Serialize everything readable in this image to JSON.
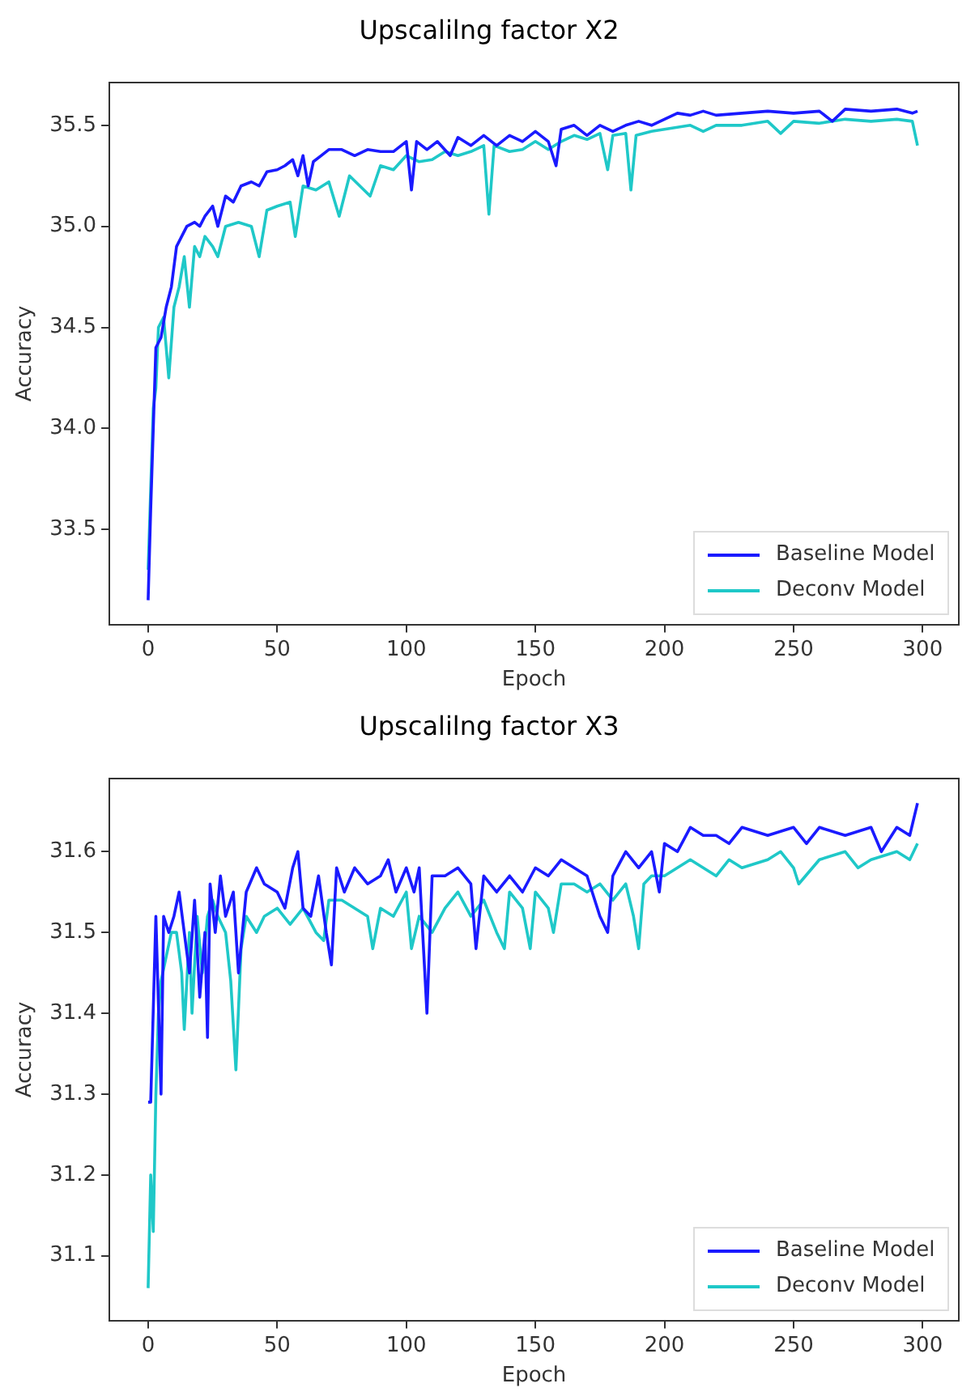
{
  "chart_data": [
    {
      "type": "line",
      "title": "Upscalilng factor X2",
      "xlabel": "Epoch",
      "ylabel": "Accuracy",
      "xlim": [
        -15,
        314
      ],
      "xticks": [
        0,
        50,
        100,
        150,
        200,
        250,
        300
      ],
      "ylim": [
        33.03,
        35.71
      ],
      "yticks": [
        {
          "value": 33.5,
          "label": "33.5"
        },
        {
          "value": 34,
          "label": "34.0"
        },
        {
          "value": 34.5,
          "label": "34.5"
        },
        {
          "value": 35,
          "label": "35.0"
        },
        {
          "value": 35.5,
          "label": "35.5"
        }
      ],
      "grid": false,
      "legend": "bottom right",
      "marker": "none",
      "line_style": "solid",
      "series": [
        {
          "name": "Baseline Model",
          "color": "#1a1aff",
          "x": [
            0,
            1,
            2,
            3,
            5,
            7,
            9,
            11,
            13,
            15,
            18,
            20,
            22,
            25,
            27,
            30,
            33,
            36,
            40,
            43,
            46,
            50,
            53,
            56,
            58,
            60,
            62,
            64,
            67,
            70,
            75,
            80,
            85,
            90,
            95,
            100,
            102,
            104,
            108,
            112,
            117,
            120,
            125,
            130,
            135,
            140,
            145,
            150,
            155,
            158,
            160,
            165,
            170,
            175,
            180,
            185,
            190,
            195,
            200,
            205,
            210,
            215,
            220,
            230,
            240,
            250,
            260,
            265,
            270,
            280,
            290,
            296,
            298
          ],
          "values": [
            33.15,
            33.6,
            34.0,
            34.4,
            34.45,
            34.6,
            34.7,
            34.9,
            34.95,
            35.0,
            35.02,
            35.0,
            35.05,
            35.1,
            35.0,
            35.15,
            35.12,
            35.2,
            35.22,
            35.2,
            35.27,
            35.28,
            35.3,
            35.33,
            35.25,
            35.35,
            35.2,
            35.32,
            35.35,
            35.38,
            35.38,
            35.35,
            35.38,
            35.37,
            35.37,
            35.42,
            35.18,
            35.42,
            35.38,
            35.42,
            35.35,
            35.44,
            35.4,
            35.45,
            35.4,
            35.45,
            35.42,
            35.47,
            35.42,
            35.3,
            35.48,
            35.5,
            35.45,
            35.5,
            35.47,
            35.5,
            35.52,
            35.5,
            35.53,
            35.56,
            35.55,
            35.57,
            35.55,
            35.56,
            35.57,
            35.56,
            35.57,
            35.52,
            35.58,
            35.57,
            35.58,
            35.56,
            35.57
          ]
        },
        {
          "name": "Deconv Model",
          "color": "#1fc8c8",
          "x": [
            0,
            1,
            2,
            3,
            4,
            6,
            8,
            10,
            12,
            14,
            16,
            18,
            20,
            22,
            25,
            27,
            30,
            35,
            40,
            43,
            46,
            50,
            55,
            57,
            60,
            65,
            70,
            74,
            78,
            82,
            86,
            90,
            95,
            100,
            105,
            110,
            115,
            120,
            125,
            130,
            132,
            134,
            140,
            145,
            150,
            155,
            160,
            165,
            170,
            175,
            178,
            180,
            185,
            187,
            189,
            195,
            200,
            210,
            215,
            220,
            230,
            240,
            245,
            250,
            260,
            270,
            280,
            290,
            296,
            298
          ],
          "values": [
            33.3,
            33.7,
            34.1,
            34.2,
            34.5,
            34.55,
            34.25,
            34.6,
            34.7,
            34.85,
            34.6,
            34.9,
            34.85,
            34.95,
            34.9,
            34.85,
            35.0,
            35.02,
            35.0,
            34.85,
            35.08,
            35.1,
            35.12,
            34.95,
            35.2,
            35.18,
            35.22,
            35.05,
            35.25,
            35.2,
            35.15,
            35.3,
            35.28,
            35.35,
            35.32,
            35.33,
            35.37,
            35.35,
            35.37,
            35.4,
            35.06,
            35.4,
            35.37,
            35.38,
            35.42,
            35.38,
            35.42,
            35.45,
            35.43,
            35.46,
            35.28,
            35.45,
            35.46,
            35.18,
            35.45,
            35.47,
            35.48,
            35.5,
            35.47,
            35.5,
            35.5,
            35.52,
            35.46,
            35.52,
            35.51,
            35.53,
            35.52,
            35.53,
            35.52,
            35.4
          ]
        }
      ]
    },
    {
      "type": "line",
      "title": "Upscalilng factor X3",
      "xlabel": "Epoch",
      "ylabel": "Accuracy",
      "xlim": [
        -15,
        314
      ],
      "xticks": [
        0,
        50,
        100,
        150,
        200,
        250,
        300
      ],
      "ylim": [
        31.02,
        31.69
      ],
      "yticks": [
        31.1,
        31.2,
        31.3,
        31.4,
        31.5,
        31.6
      ],
      "grid": false,
      "legend": "bottom right",
      "marker": "none",
      "line_style": "solid",
      "series": [
        {
          "name": "Baseline Model",
          "color": "#1a1aff",
          "x": [
            0,
            1,
            3,
            5,
            6,
            8,
            10,
            12,
            14,
            16,
            18,
            20,
            22,
            23,
            24,
            26,
            28,
            30,
            33,
            35,
            38,
            42,
            45,
            50,
            53,
            56,
            58,
            60,
            63,
            66,
            69,
            71,
            73,
            76,
            80,
            85,
            90,
            93,
            96,
            100,
            103,
            105,
            108,
            110,
            115,
            120,
            125,
            127,
            130,
            135,
            140,
            145,
            150,
            155,
            160,
            165,
            170,
            175,
            178,
            180,
            185,
            190,
            195,
            198,
            200,
            205,
            210,
            215,
            220,
            225,
            230,
            240,
            250,
            255,
            260,
            270,
            280,
            284,
            290,
            295,
            298
          ],
          "values": [
            31.29,
            31.29,
            31.52,
            31.3,
            31.52,
            31.5,
            31.52,
            31.55,
            31.5,
            31.45,
            31.54,
            31.42,
            31.5,
            31.37,
            31.56,
            31.5,
            31.57,
            31.52,
            31.55,
            31.45,
            31.55,
            31.58,
            31.56,
            31.55,
            31.53,
            31.58,
            31.6,
            31.53,
            31.52,
            31.57,
            31.5,
            31.46,
            31.58,
            31.55,
            31.58,
            31.56,
            31.57,
            31.59,
            31.55,
            31.58,
            31.55,
            31.58,
            31.4,
            31.57,
            31.57,
            31.58,
            31.56,
            31.48,
            31.57,
            31.55,
            31.57,
            31.55,
            31.58,
            31.57,
            31.59,
            31.58,
            31.57,
            31.52,
            31.5,
            31.57,
            31.6,
            31.58,
            31.6,
            31.55,
            31.61,
            31.6,
            31.63,
            31.62,
            31.62,
            31.61,
            31.63,
            31.62,
            31.63,
            31.61,
            31.63,
            31.62,
            31.63,
            31.6,
            31.63,
            31.62,
            31.66
          ]
        },
        {
          "name": "Deconv Model",
          "color": "#1fc8c8",
          "x": [
            0,
            1,
            2,
            3,
            4,
            5,
            7,
            9,
            11,
            13,
            14,
            16,
            17,
            19,
            21,
            23,
            25,
            27,
            30,
            32,
            34,
            36,
            38,
            42,
            45,
            50,
            55,
            60,
            65,
            68,
            70,
            75,
            80,
            85,
            87,
            90,
            95,
            100,
            102,
            105,
            110,
            115,
            120,
            125,
            130,
            135,
            138,
            140,
            145,
            148,
            150,
            155,
            157,
            160,
            165,
            170,
            175,
            180,
            185,
            188,
            190,
            192,
            195,
            200,
            205,
            210,
            215,
            220,
            225,
            230,
            240,
            245,
            250,
            252,
            260,
            270,
            275,
            280,
            290,
            295,
            298
          ],
          "values": [
            31.06,
            31.2,
            31.13,
            31.3,
            31.4,
            31.44,
            31.47,
            31.5,
            31.5,
            31.45,
            31.38,
            31.5,
            31.4,
            31.52,
            31.45,
            31.52,
            31.54,
            31.52,
            31.5,
            31.44,
            31.33,
            31.48,
            31.52,
            31.5,
            31.52,
            31.53,
            31.51,
            31.53,
            31.5,
            31.49,
            31.54,
            31.54,
            31.53,
            31.52,
            31.48,
            31.53,
            31.52,
            31.55,
            31.48,
            31.52,
            31.5,
            31.53,
            31.55,
            31.52,
            31.54,
            31.5,
            31.48,
            31.55,
            31.53,
            31.48,
            31.55,
            31.53,
            31.5,
            31.56,
            31.56,
            31.55,
            31.56,
            31.54,
            31.56,
            31.52,
            31.48,
            31.56,
            31.57,
            31.57,
            31.58,
            31.59,
            31.58,
            31.57,
            31.59,
            31.58,
            31.59,
            31.6,
            31.58,
            31.56,
            31.59,
            31.6,
            31.58,
            31.59,
            31.6,
            31.59,
            31.61
          ]
        }
      ]
    }
  ]
}
